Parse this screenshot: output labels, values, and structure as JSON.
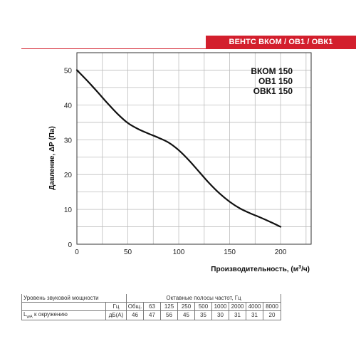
{
  "banner": {
    "title": "ВЕНТС ВКОМ / ОВ1 / ОВК1"
  },
  "models": [
    "ВКОМ 150",
    "ОВ1 150",
    "ОВК1 150"
  ],
  "chart_data": {
    "type": "line",
    "ylabel": "Давление, ΔP (Па)",
    "xlabel": "Производительность, (м³/ч)",
    "xlim": [
      0,
      230
    ],
    "ylim": [
      0,
      55
    ],
    "x_ticks": [
      0,
      50,
      100,
      150,
      200
    ],
    "y_ticks": [
      0,
      10,
      20,
      30,
      40,
      50
    ],
    "grid": true,
    "series": [
      {
        "x": [
          0,
          10,
          20,
          30,
          40,
          50,
          60,
          70,
          80,
          90,
          100,
          110,
          120,
          130,
          140,
          150,
          160,
          170,
          180,
          190,
          200
        ],
        "y": [
          50,
          47,
          43.8,
          40.5,
          37.4,
          34.8,
          33.1,
          31.8,
          30.6,
          29.2,
          27.0,
          24.1,
          20.8,
          17.5,
          14.6,
          12.2,
          10.3,
          8.9,
          7.7,
          6.4,
          5.0
        ]
      }
    ]
  },
  "noise_table": {
    "row1": {
      "label": "Уровень звуковой мощности",
      "caption": "Октавные полосы частот, Гц"
    },
    "row2": {
      "unit": "Гц",
      "cols": [
        "Общ.",
        "63",
        "125",
        "250",
        "500",
        "1000",
        "2000",
        "4000",
        "8000"
      ]
    },
    "row3": {
      "label": "LwA к окружению",
      "unit": "дБ(А)",
      "values": [
        "46",
        "47",
        "56",
        "45",
        "35",
        "30",
        "31",
        "31",
        "20"
      ]
    }
  }
}
